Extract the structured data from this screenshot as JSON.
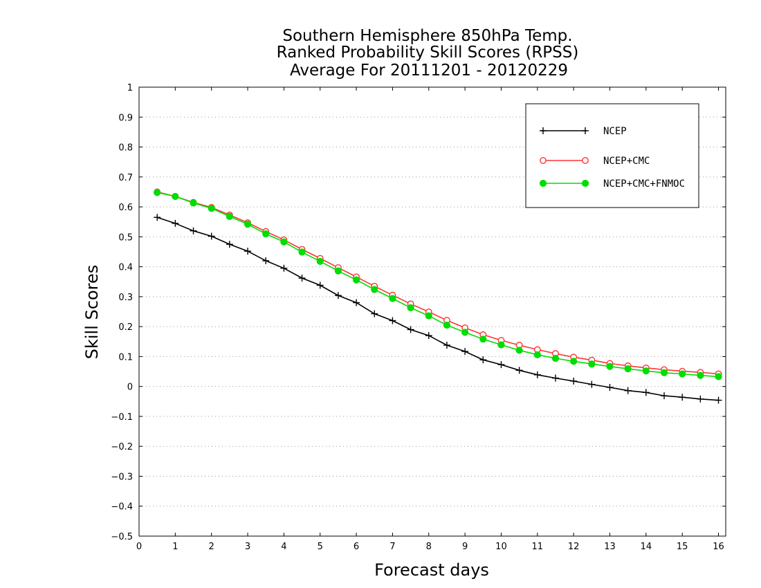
{
  "chart_data": {
    "type": "line",
    "title": [
      "Southern Hemisphere 850hPa Temp.",
      "Ranked Probability Skill Scores (RPSS)",
      "Average For 20111201 - 20120229"
    ],
    "xlabel": "Forecast days",
    "ylabel": "Skill Scores",
    "xlim": [
      0,
      16.2
    ],
    "ylim": [
      -0.5,
      1
    ],
    "x_ticks": [
      0,
      1,
      2,
      3,
      4,
      5,
      6,
      7,
      8,
      9,
      10,
      11,
      12,
      13,
      14,
      15,
      16
    ],
    "y_ticks": [
      -0.5,
      -0.4,
      -0.3,
      -0.2,
      -0.1,
      0,
      0.1,
      0.2,
      0.3,
      0.4,
      0.5,
      0.6,
      0.7,
      0.8,
      0.9,
      1
    ],
    "y_tick_labels": [
      "−0.5",
      "−0.4",
      "−0.3",
      "−0.2",
      "−0.1",
      "0",
      "0.1",
      "0.2",
      "0.3",
      "0.4",
      "0.5",
      "0.6",
      "0.7",
      "0.8",
      "0.9",
      "1"
    ],
    "grid": "horizontal dotted",
    "legend_position": "top-right",
    "x": [
      0.5,
      1,
      1.5,
      2,
      2.5,
      3,
      3.5,
      4,
      4.5,
      5,
      5.5,
      6,
      6.5,
      7,
      7.5,
      8,
      8.5,
      9,
      9.5,
      10,
      10.5,
      11,
      11.5,
      12,
      12.5,
      13,
      13.5,
      14,
      14.5,
      15,
      15.5,
      16
    ],
    "series": [
      {
        "name": "NCEP",
        "color": "#000000",
        "marker": "plus",
        "values": [
          0.565,
          0.545,
          0.52,
          0.502,
          0.475,
          0.452,
          0.42,
          0.395,
          0.362,
          0.338,
          0.304,
          0.28,
          0.243,
          0.22,
          0.19,
          0.17,
          0.138,
          0.117,
          0.089,
          0.073,
          0.054,
          0.039,
          0.028,
          0.018,
          0.007,
          -0.003,
          -0.014,
          -0.02,
          -0.031,
          -0.036,
          -0.042,
          -0.046
        ]
      },
      {
        "name": "NCEP+CMC",
        "color": "#ff3333",
        "marker": "open-circle",
        "values": [
          0.65,
          0.635,
          0.615,
          0.598,
          0.573,
          0.547,
          0.518,
          0.49,
          0.458,
          0.428,
          0.397,
          0.366,
          0.335,
          0.305,
          0.276,
          0.249,
          0.221,
          0.196,
          0.173,
          0.154,
          0.138,
          0.123,
          0.11,
          0.098,
          0.088,
          0.077,
          0.069,
          0.062,
          0.056,
          0.051,
          0.047,
          0.042
        ]
      },
      {
        "name": "NCEP+CMC+FNMOC",
        "color": "#00dd00",
        "marker": "filled-circle",
        "values": [
          0.648,
          0.635,
          0.613,
          0.595,
          0.568,
          0.542,
          0.51,
          0.483,
          0.449,
          0.418,
          0.386,
          0.356,
          0.324,
          0.294,
          0.263,
          0.236,
          0.205,
          0.181,
          0.158,
          0.139,
          0.121,
          0.106,
          0.094,
          0.084,
          0.075,
          0.067,
          0.059,
          0.052,
          0.046,
          0.042,
          0.037,
          0.033
        ]
      }
    ]
  }
}
